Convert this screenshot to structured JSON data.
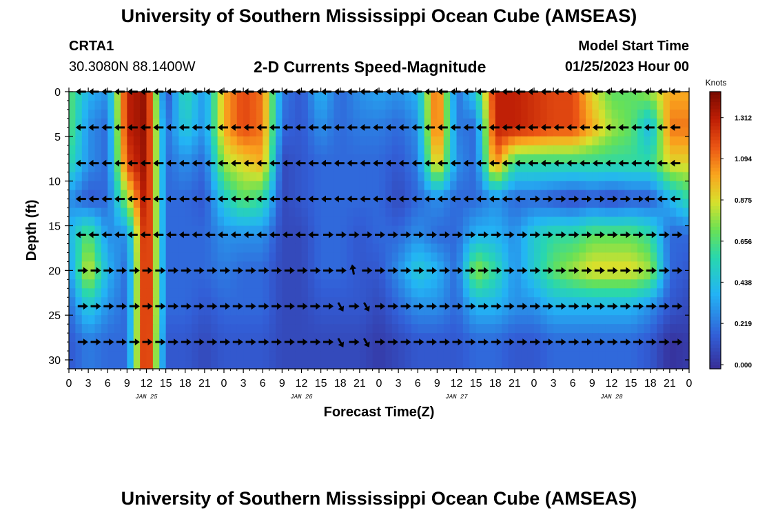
{
  "header": {
    "title": "University of Southern Mississippi Ocean Cube (AMSEAS)",
    "station": "CRTA1",
    "coords": "30.3080N  88.1400W",
    "subtitle": "2-D Currents Speed-Magnitude",
    "model_start_label": "Model Start Time",
    "model_start_value": "01/25/2023 Hour 00"
  },
  "footer": {
    "title": "University of Southern Mississippi Ocean Cube (AMSEAS)"
  },
  "chart_data": {
    "type": "heatmap",
    "xlabel": "Forecast Time(Z)",
    "ylabel": "Depth (ft)",
    "x_ticks": [
      "0",
      "3",
      "6",
      "9",
      "12",
      "15",
      "18",
      "21",
      "0",
      "3",
      "6",
      "9",
      "12",
      "15",
      "18",
      "21",
      "0",
      "3",
      "6",
      "9",
      "12",
      "15",
      "18",
      "21",
      "0",
      "3",
      "6",
      "9",
      "12",
      "15",
      "18",
      "21",
      "0"
    ],
    "day_labels": [
      "JAN 25",
      "JAN 26",
      "JAN 27",
      "JAN 28"
    ],
    "y_ticks": [
      "0",
      "5",
      "10",
      "15",
      "20",
      "25",
      "30"
    ],
    "ylim": [
      0,
      31
    ],
    "xlim_hours": [
      0,
      96
    ],
    "colorbar": {
      "unit": "Knots",
      "min": 0.0,
      "max": 1.45,
      "ticks": [
        "0.000",
        "0.219",
        "0.438",
        "0.656",
        "0.875",
        "1.094",
        "1.312"
      ]
    },
    "speed_knots_at_arrow_levels": {
      "depths_ft": [
        0,
        4,
        8,
        12,
        16,
        20,
        24,
        28
      ],
      "hours": [
        0,
        3,
        6,
        9,
        12,
        15,
        18,
        21,
        24,
        27,
        30,
        33,
        36,
        39,
        42,
        45,
        48,
        51,
        54,
        57,
        60,
        63,
        66,
        69,
        72,
        75,
        78,
        81,
        84,
        87,
        90,
        93,
        96
      ],
      "rows": [
        [
          0.7,
          0.4,
          0.3,
          1.3,
          1.4,
          0.1,
          0.6,
          0.3,
          1.0,
          1.2,
          1.1,
          0.25,
          0.15,
          0.4,
          0.2,
          0.3,
          0.35,
          0.3,
          0.4,
          1.2,
          0.2,
          0.5,
          1.3,
          1.3,
          1.25,
          1.2,
          1.2,
          0.9,
          0.7,
          0.7,
          0.8,
          1.0,
          1.0
        ],
        [
          0.7,
          0.3,
          0.2,
          1.3,
          1.4,
          0.2,
          0.5,
          0.3,
          1.0,
          1.2,
          1.1,
          0.2,
          0.15,
          0.3,
          0.2,
          0.25,
          0.25,
          0.2,
          0.3,
          1.2,
          0.25,
          0.2,
          1.3,
          1.3,
          1.25,
          1.2,
          1.2,
          1.0,
          0.8,
          0.7,
          0.4,
          1.1,
          1.1
        ],
        [
          0.6,
          0.3,
          0.2,
          1.2,
          1.4,
          0.2,
          0.3,
          0.2,
          0.8,
          0.9,
          1.0,
          0.1,
          0.15,
          0.2,
          0.2,
          0.2,
          0.2,
          0.15,
          0.25,
          1.0,
          0.3,
          0.2,
          1.1,
          0.6,
          0.6,
          0.6,
          0.6,
          0.6,
          0.6,
          0.6,
          0.6,
          0.9,
          0.9
        ],
        [
          0.3,
          0.15,
          0.2,
          0.8,
          1.4,
          0.2,
          0.2,
          0.15,
          0.5,
          0.7,
          0.6,
          0.1,
          0.15,
          0.2,
          0.2,
          0.2,
          0.2,
          0.1,
          0.2,
          0.3,
          0.2,
          0.2,
          0.3,
          0.2,
          0.2,
          0.15,
          0.1,
          0.15,
          0.1,
          0.15,
          0.15,
          0.4,
          0.6
        ],
        [
          0.4,
          0.7,
          0.3,
          0.3,
          1.4,
          0.2,
          0.2,
          0.2,
          0.3,
          0.3,
          0.3,
          0.1,
          0.1,
          0.2,
          0.2,
          0.15,
          0.2,
          0.2,
          0.3,
          0.2,
          0.2,
          0.4,
          0.4,
          0.3,
          0.5,
          0.6,
          0.6,
          0.7,
          0.7,
          0.7,
          0.6,
          0.2,
          0.2
        ],
        [
          0.3,
          0.9,
          0.4,
          0.2,
          1.4,
          0.2,
          0.2,
          0.2,
          0.25,
          0.2,
          0.2,
          0.1,
          0.1,
          0.2,
          0.2,
          0.15,
          0.15,
          0.3,
          0.5,
          0.4,
          0.2,
          0.8,
          0.6,
          0.3,
          0.5,
          0.7,
          0.8,
          0.9,
          0.9,
          0.9,
          0.8,
          0.2,
          0.15
        ],
        [
          0.2,
          0.5,
          0.3,
          0.2,
          1.4,
          0.2,
          0.2,
          0.15,
          0.2,
          0.2,
          0.2,
          0.1,
          0.1,
          0.15,
          0.15,
          0.15,
          0.1,
          0.2,
          0.3,
          0.3,
          0.2,
          0.4,
          0.4,
          0.3,
          0.3,
          0.4,
          0.4,
          0.4,
          0.4,
          0.4,
          0.3,
          0.15,
          0.1
        ],
        [
          0.15,
          0.25,
          0.2,
          0.2,
          1.4,
          0.15,
          0.15,
          0.1,
          0.15,
          0.15,
          0.15,
          0.1,
          0.1,
          0.1,
          0.1,
          0.1,
          0.05,
          0.1,
          0.15,
          0.15,
          0.15,
          0.2,
          0.2,
          0.15,
          0.15,
          0.2,
          0.2,
          0.2,
          0.2,
          0.2,
          0.15,
          0.02,
          0.05
        ]
      ]
    },
    "arrow_grid": {
      "depths_ft": [
        0,
        4,
        8,
        12,
        16,
        20,
        24,
        28
      ],
      "hours_start": 0,
      "hours_step": 2,
      "hours_end": 96
    }
  }
}
